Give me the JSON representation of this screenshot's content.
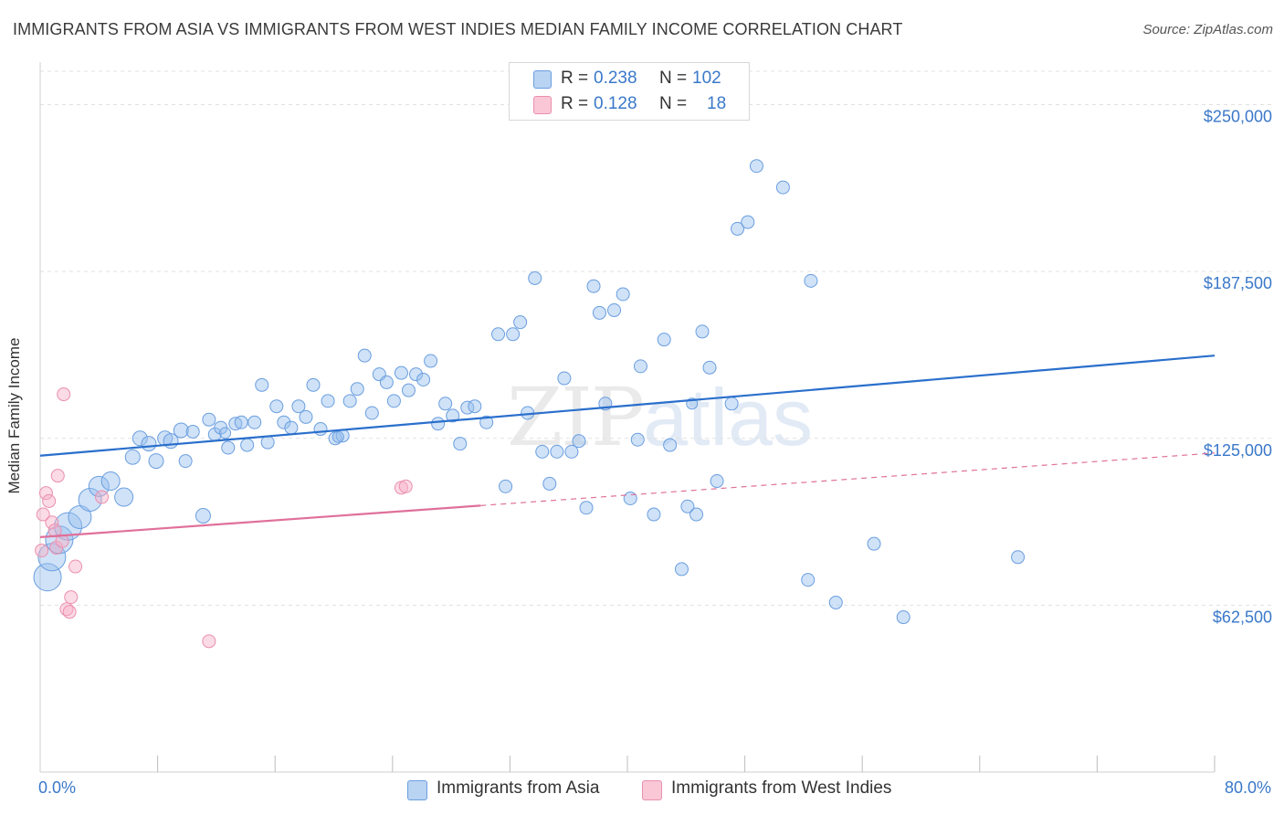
{
  "title": "IMMIGRANTS FROM ASIA VS IMMIGRANTS FROM WEST INDIES MEDIAN FAMILY INCOME CORRELATION CHART",
  "source": "Source: ZipAtlas.com",
  "watermark": {
    "zip": "ZIP",
    "atlas": "atlas"
  },
  "legend": {
    "rows": [
      {
        "r_label": "R =",
        "r_value": "0.238",
        "n_label": "N =",
        "n_value": "102",
        "fill": "#b9d3f2",
        "stroke": "#6a9ee0"
      },
      {
        "r_label": "R =",
        "r_value": "0.128",
        "n_label": "N =",
        "n_value": "18",
        "fill": "#f9c7d6",
        "stroke": "#eb8faf"
      }
    ]
  },
  "bottom_legend": [
    {
      "label": "Immigrants from Asia",
      "fill": "#b9d3f2",
      "stroke": "#6a9ee0"
    },
    {
      "label": "Immigrants from West Indies",
      "fill": "#f9c7d6",
      "stroke": "#eb8faf"
    }
  ],
  "colors": {
    "asia_line": "#2a6fcc",
    "wi_line": "#e0709a",
    "tick_text": "#3a78c9",
    "grid": "#e1e1e1"
  },
  "chart_data": {
    "type": "scatter",
    "title": "IMMIGRANTS FROM ASIA VS IMMIGRANTS FROM WEST INDIES MEDIAN FAMILY INCOME CORRELATION CHART",
    "xlabel": "",
    "ylabel": "Median Family Income",
    "xlim": [
      0,
      80
    ],
    "ylim": [
      0,
      262500
    ],
    "x_tick_labels": [
      {
        "value": 0,
        "label": "0.0%"
      },
      {
        "value": 80,
        "label": "80.0%"
      }
    ],
    "x_minor_ticks": [
      8,
      16,
      24,
      32,
      40,
      48,
      56,
      64,
      72,
      80
    ],
    "y_ticks": [
      {
        "value": 62500,
        "label": "$62,500"
      },
      {
        "value": 125000,
        "label": "$125,000"
      },
      {
        "value": 187500,
        "label": "$187,500"
      },
      {
        "value": 250000,
        "label": "$250,000"
      }
    ],
    "grid": true,
    "legend_position": "top-center",
    "series": [
      {
        "name": "Immigrants from Asia",
        "trend": {
          "x0": 0,
          "y0": 118500,
          "x1": 80,
          "y1": 156000,
          "dashed_from": null
        },
        "points": [
          [
            0.5,
            73000,
            3
          ],
          [
            0.8,
            80500,
            3
          ],
          [
            1.3,
            87000,
            3
          ],
          [
            1.9,
            92000,
            3
          ],
          [
            2.7,
            95500,
            2.5
          ],
          [
            3.4,
            102000,
            2.5
          ],
          [
            4.0,
            107000,
            2.2
          ],
          [
            4.8,
            109000,
            2
          ],
          [
            5.7,
            103000,
            2
          ],
          [
            6.3,
            118000,
            1.6
          ],
          [
            6.8,
            125000,
            1.6
          ],
          [
            7.4,
            123000,
            1.6
          ],
          [
            7.9,
            116500,
            1.6
          ],
          [
            8.5,
            125000,
            1.6
          ],
          [
            8.9,
            124000,
            1.6
          ],
          [
            9.6,
            128000,
            1.6
          ],
          [
            9.9,
            116500,
            1.4
          ],
          [
            10.4,
            127500,
            1.4
          ],
          [
            11.1,
            96000,
            1.6
          ],
          [
            11.5,
            132000,
            1.4
          ],
          [
            11.9,
            126500,
            1.4
          ],
          [
            12.3,
            129000,
            1.4
          ],
          [
            12.8,
            121500,
            1.4
          ],
          [
            13.3,
            130500,
            1.4
          ],
          [
            13.7,
            131000,
            1.4
          ],
          [
            14.1,
            122500,
            1.4
          ],
          [
            14.6,
            131000,
            1.4
          ],
          [
            15.1,
            145000,
            1.4
          ],
          [
            15.5,
            123500,
            1.4
          ],
          [
            16.1,
            137000,
            1.4
          ],
          [
            16.6,
            131000,
            1.4
          ],
          [
            17.1,
            129000,
            1.4
          ],
          [
            17.6,
            137000,
            1.4
          ],
          [
            18.1,
            133000,
            1.4
          ],
          [
            18.6,
            145000,
            1.4
          ],
          [
            19.1,
            128500,
            1.4
          ],
          [
            19.6,
            139000,
            1.4
          ],
          [
            20.1,
            125000,
            1.4
          ],
          [
            20.6,
            126000,
            1.4
          ],
          [
            21.1,
            139000,
            1.4
          ],
          [
            21.6,
            143500,
            1.4
          ],
          [
            22.1,
            156000,
            1.4
          ],
          [
            22.6,
            134500,
            1.4
          ],
          [
            23.1,
            149000,
            1.4
          ],
          [
            23.6,
            146000,
            1.4
          ],
          [
            24.1,
            139000,
            1.4
          ],
          [
            24.6,
            149500,
            1.4
          ],
          [
            25.1,
            143000,
            1.4
          ],
          [
            25.6,
            149000,
            1.4
          ],
          [
            26.1,
            147000,
            1.4
          ],
          [
            26.6,
            154000,
            1.4
          ],
          [
            27.1,
            130500,
            1.4
          ],
          [
            27.6,
            138000,
            1.4
          ],
          [
            28.1,
            133500,
            1.4
          ],
          [
            28.6,
            123000,
            1.4
          ],
          [
            29.1,
            136500,
            1.4
          ],
          [
            29.6,
            137000,
            1.4
          ],
          [
            30.4,
            131000,
            1.4
          ],
          [
            31.2,
            164000,
            1.4
          ],
          [
            31.7,
            107000,
            1.4
          ],
          [
            32.2,
            164000,
            1.4
          ],
          [
            32.7,
            168500,
            1.4
          ],
          [
            33.2,
            134500,
            1.4
          ],
          [
            33.7,
            185000,
            1.4
          ],
          [
            34.2,
            120000,
            1.4
          ],
          [
            34.7,
            108000,
            1.4
          ],
          [
            35.2,
            120000,
            1.4
          ],
          [
            35.7,
            147500,
            1.4
          ],
          [
            36.2,
            120000,
            1.4
          ],
          [
            36.7,
            124000,
            1.4
          ],
          [
            37.2,
            99000,
            1.4
          ],
          [
            37.7,
            182000,
            1.4
          ],
          [
            38.1,
            172000,
            1.4
          ],
          [
            38.5,
            138000,
            1.4
          ],
          [
            39.1,
            173000,
            1.4
          ],
          [
            39.7,
            179000,
            1.4
          ],
          [
            40.2,
            102500,
            1.4
          ],
          [
            40.7,
            124500,
            1.4
          ],
          [
            40.9,
            152000,
            1.4
          ],
          [
            41.8,
            96500,
            1.4
          ],
          [
            42.5,
            162000,
            1.4
          ],
          [
            42.9,
            122500,
            1.4
          ],
          [
            43.7,
            76000,
            1.4
          ],
          [
            44.1,
            99500,
            1.4
          ],
          [
            44.7,
            96500,
            1.4
          ],
          [
            45.1,
            165000,
            1.4
          ],
          [
            45.6,
            151500,
            1.4
          ],
          [
            46.1,
            109000,
            1.4
          ],
          [
            47.1,
            138000,
            1.4
          ],
          [
            47.5,
            203500,
            1.4
          ],
          [
            48.2,
            206000,
            1.4
          ],
          [
            48.8,
            227000,
            1.4
          ],
          [
            50.6,
            219000,
            1.4
          ],
          [
            52.3,
            72000,
            1.4
          ],
          [
            52.5,
            184000,
            1.4
          ],
          [
            54.2,
            63500,
            1.4
          ],
          [
            56.8,
            85500,
            1.4
          ],
          [
            58.8,
            58000,
            1.4
          ],
          [
            66.6,
            80500,
            1.4
          ],
          [
            44.4,
            138000,
            1.2
          ],
          [
            12.6,
            127000,
            1.2
          ],
          [
            20.3,
            125500,
            1.2
          ]
        ]
      },
      {
        "name": "Immigrants from West Indies",
        "trend": {
          "x0": 0,
          "y0": 88000,
          "x1": 80,
          "y1": 119500,
          "dashed_from": 30
        },
        "points": [
          [
            0.2,
            96500,
            1.4
          ],
          [
            0.4,
            104500,
            1.4
          ],
          [
            0.6,
            101500,
            1.4
          ],
          [
            0.8,
            93500,
            1.4
          ],
          [
            1.0,
            90500,
            1.4
          ],
          [
            1.1,
            84000,
            1.4
          ],
          [
            1.2,
            111000,
            1.4
          ],
          [
            1.5,
            86500,
            1.4
          ],
          [
            1.6,
            141500,
            1.4
          ],
          [
            1.8,
            61000,
            1.4
          ],
          [
            2.0,
            60000,
            1.4
          ],
          [
            2.1,
            65500,
            1.4
          ],
          [
            2.4,
            77000,
            1.4
          ],
          [
            4.2,
            103000,
            1.4
          ],
          [
            11.5,
            49000,
            1.4
          ],
          [
            24.6,
            106500,
            1.4
          ],
          [
            24.9,
            107000,
            1.4
          ],
          [
            0.1,
            83000,
            1.4
          ]
        ]
      }
    ]
  }
}
